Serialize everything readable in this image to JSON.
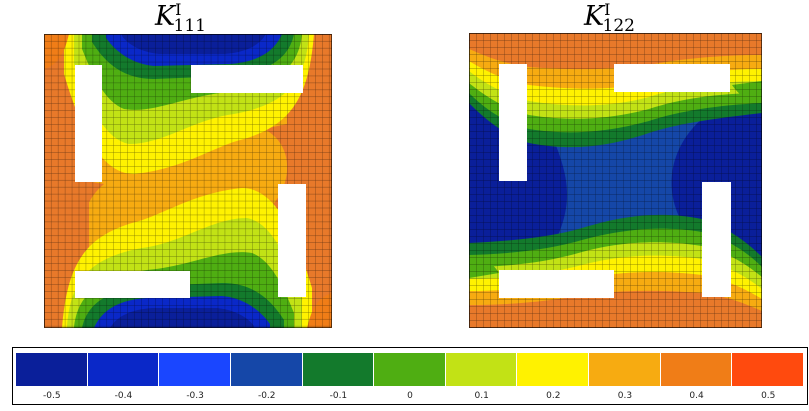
{
  "titles": {
    "left": {
      "symbol": "K",
      "sup": "I",
      "sub": "111"
    },
    "right": {
      "symbol": "K",
      "sup": "I",
      "sub": "122"
    }
  },
  "colorbar": {
    "ticks": [
      "-0.5",
      "-0.4",
      "-0.3",
      "-0.2",
      "-0.1",
      "0",
      "0.1",
      "0.2",
      "0.3",
      "0.4",
      "0.5"
    ],
    "colors": [
      "#0a1f9a",
      "#0a28c8",
      "#1a46ff",
      "#1547a8",
      "#137a2c",
      "#4fae12",
      "#c2e215",
      "#fff200",
      "#f7ab11",
      "#f07d17",
      "#ff4a0e"
    ]
  },
  "field_colors": {
    "deep_blue": "#0a1f9a",
    "blue": "#0a28c8",
    "green": "#137a2c",
    "light_green": "#4fae12",
    "yellow_green": "#c2e215",
    "yellow": "#fff200",
    "light_orange": "#f7ab11",
    "orange": "#e8792a"
  }
}
